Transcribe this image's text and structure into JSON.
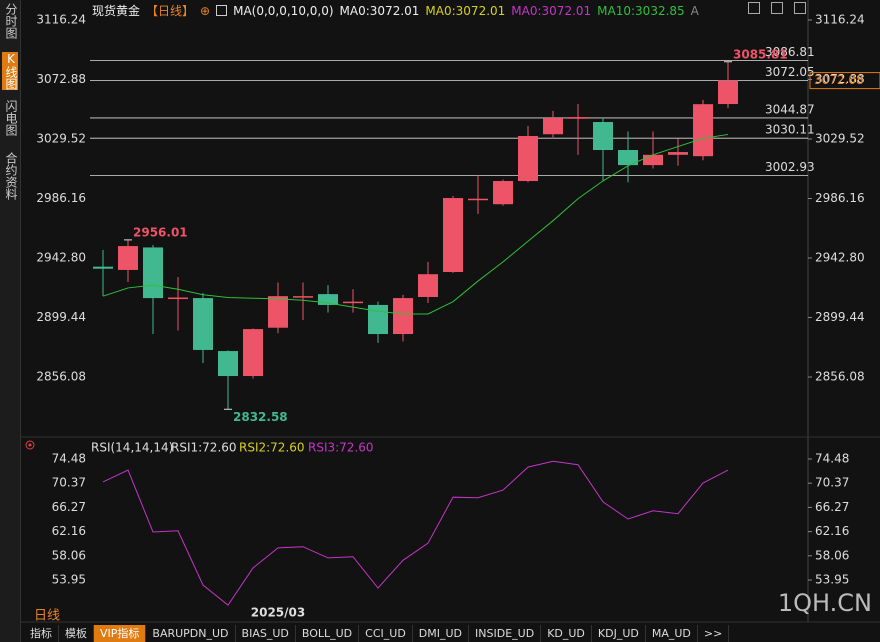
{
  "sidebar_tabs": [
    "分时图",
    "K线图",
    "闪电图",
    "合约资料"
  ],
  "header": {
    "symbol": "现货黄金",
    "period": "【日线】",
    "indicator": "MA(0,0,0,10,0,0)",
    "ma_values": [
      "MA0:3072.01",
      "MA0:3072.01",
      "MA0:3072.01",
      "MA10:3032.85"
    ],
    "trailing": "A"
  },
  "chart_data": [
    {
      "type": "candlestick",
      "categories": [
        null,
        null,
        null,
        null,
        null,
        null,
        null,
        "2025/03",
        null,
        null,
        null,
        null,
        null,
        null,
        null,
        null,
        null,
        null,
        null,
        null,
        null,
        null,
        null,
        null,
        null,
        null
      ],
      "open": [
        2936.5,
        2934.1,
        2950.5,
        2913.0,
        2913.6,
        2875.0,
        2856.8,
        2892.0,
        2914.0,
        2916.5,
        2910.0,
        2908.6,
        2887.4,
        2914.4,
        2932.6,
        2985.0,
        2982.0,
        2998.9,
        3033.0,
        3044.3,
        3041.9,
        3021.5,
        3010.5,
        3018.0,
        3017.0,
        3055.0
      ],
      "high": [
        2948.6,
        2956.01,
        2952.3,
        2929.0,
        2917.3,
        2875.5,
        2891.5,
        2925.0,
        2925.0,
        2923.0,
        2920.0,
        2911.0,
        2916.0,
        2940.0,
        2988.0,
        3003.0,
        3000.0,
        3039.0,
        3050.0,
        3055.0,
        3045.0,
        3035.0,
        3035.0,
        3030.0,
        3058.0,
        3085.81
      ],
      "low": [
        2915.1,
        2925.3,
        2887.4,
        2890.0,
        2866.3,
        2832.58,
        2855.0,
        2888.0,
        2897.6,
        2903.0,
        2903.0,
        2881.0,
        2882.0,
        2910.0,
        2932.0,
        2975.0,
        2981.0,
        2998.0,
        3030.0,
        3018.0,
        2999.0,
        2998.0,
        3008.0,
        3010.0,
        3014.0,
        3052.0
      ],
      "close": [
        2935.0,
        2951.5,
        2913.6,
        2914.0,
        2875.8,
        2856.8,
        2891.0,
        2915.0,
        2915.0,
        2908.6,
        2911.0,
        2887.4,
        2913.6,
        2931.0,
        2986.5,
        2986.0,
        2998.9,
        3031.7,
        3044.8,
        3045.5,
        3021.5,
        3010.5,
        3018.0,
        3020.0,
        3054.9,
        3072.08
      ],
      "up_color": "#ee5468",
      "down_color": "#41b88f",
      "series": [
        {
          "name": "MA10",
          "color": "#2fbf3a",
          "values": [
            2915,
            2921,
            2923,
            2920,
            2916,
            2914,
            2913.5,
            2913,
            2912,
            2910,
            2907,
            2904,
            2902,
            2902,
            2911,
            2926,
            2940,
            2955,
            2970,
            2986,
            2999,
            3010,
            3018,
            3024,
            3030,
            3032.85
          ]
        }
      ],
      "levels": [
        3086.81,
        3072.05,
        3044.87,
        3030.11,
        3002.93
      ],
      "ylim": [
        2818.93,
        3122.07
      ],
      "yticks": [
        3116.24,
        3072.88,
        3029.52,
        2986.16,
        {
          "value": 2942.8,
          "label": "2942.80"
        },
        2899.44,
        2856.08
      ]
    },
    {
      "type": "line",
      "legend": [
        "RSI(14,14,14)",
        "RSI1:72.60",
        "RSI2:72.60",
        "RSI3:72.60"
      ],
      "series": [
        {
          "name": "RSI",
          "color": "#c535c8",
          "values": [
            70.58,
            72.6,
            62.1,
            62.3,
            53.1,
            49.7,
            56.0,
            59.4,
            59.6,
            57.7,
            57.9,
            52.6,
            57.3,
            60.2,
            68.0,
            67.9,
            69.2,
            73.1,
            74.1,
            73.5,
            67.2,
            64.3,
            65.7,
            65.2,
            70.4,
            72.6
          ]
        }
      ],
      "ylim": [
        48.87,
        76.85
      ],
      "yticks": [
        74.48,
        70.37,
        66.27,
        62.16,
        58.06,
        53.95
      ]
    }
  ],
  "period_label": "日线",
  "toolbar": [
    "指标",
    "模板",
    "VIP指标",
    "BARUPDN_UD",
    "BIAS_UD",
    "BOLL_UD",
    "CCI_UD",
    "DMI_UD",
    "INSIDE_UD",
    "KD_UD",
    "KDJ_UD",
    "MA_UD",
    ">>"
  ],
  "watermark": "1QH.CN"
}
